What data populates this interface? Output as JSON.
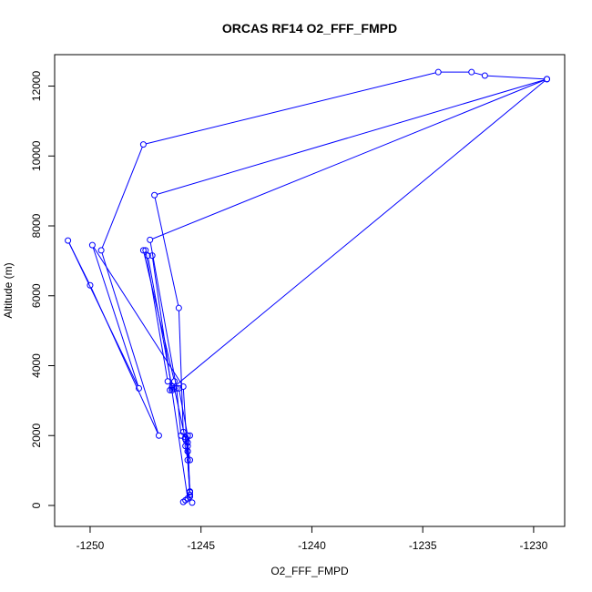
{
  "chart_data": {
    "type": "line",
    "title": "ORCAS RF14 O2_FFF_FMPD",
    "xlabel": "O2_FFF_FMPD",
    "ylabel": "Altitude (m)",
    "xlim": [
      -1251.6,
      -1228.6
    ],
    "ylim": [
      -600,
      12900
    ],
    "xticks": [
      -1250,
      -1245,
      -1240,
      -1235,
      -1230
    ],
    "yticks": [
      0,
      2000,
      4000,
      6000,
      8000,
      10000,
      12000
    ],
    "grid": false,
    "series": [
      {
        "color": "#0000ff",
        "marker": "open-circle",
        "x": [
          -1245.4,
          -1245.5,
          -1245.5,
          -1245.6,
          -1245.7,
          -1245.6,
          -1245.5,
          -1245.6,
          -1245.5,
          -1246.2,
          -1246.3,
          -1246.5,
          -1247.5,
          -1247.4,
          -1246.3,
          -1246.3,
          -1246.0,
          -1245.6,
          -1245.5,
          -1245.8,
          -1249.9,
          -1247.8,
          -1251.0,
          -1250.0,
          -1246.9,
          -1249.5,
          -1247.6,
          -1234.3,
          -1232.8,
          -1232.2,
          -1229.4,
          -1247.1,
          -1246.0,
          -1245.8,
          -1245.7,
          -1245.6,
          -1245.5,
          -1245.6,
          -1247.2,
          -1247.6,
          -1246.2,
          -1246.3,
          -1246.4,
          -1229.4,
          -1247.3,
          -1246.1,
          -1245.9,
          -1245.7,
          -1245.6,
          -1245.5,
          -1245.6,
          -1245.7,
          -1245.8
        ],
        "y": [
          80,
          250,
          380,
          1550,
          1950,
          1800,
          2000,
          1700,
          1300,
          3350,
          3400,
          3550,
          7300,
          7150,
          3350,
          3300,
          3350,
          2000,
          300,
          3400,
          7450,
          3350,
          7580,
          6300,
          2000,
          7300,
          10330,
          12400,
          12400,
          12300,
          12200,
          8880,
          5650,
          2100,
          1900,
          1550,
          400,
          200,
          7150,
          7300,
          3550,
          3400,
          3300,
          12200,
          7600,
          3350,
          2000,
          1700,
          1300,
          300,
          200,
          150,
          100
        ]
      }
    ]
  }
}
